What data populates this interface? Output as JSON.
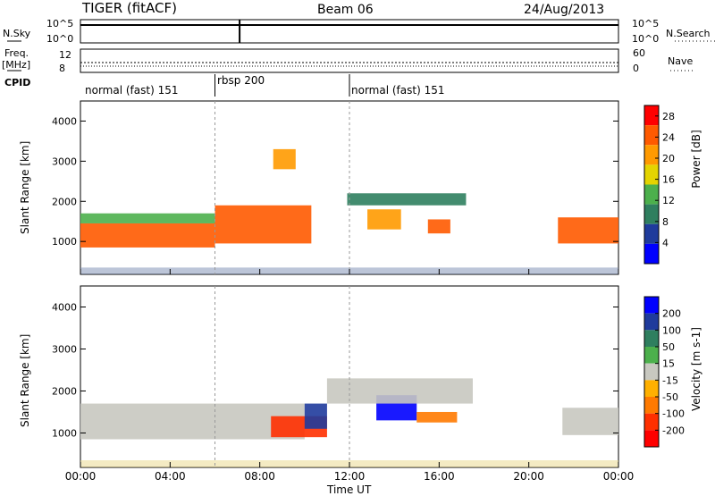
{
  "header": {
    "station": "TIGER (fitACF)",
    "beam": "Beam 06",
    "date": "24/Aug/2013"
  },
  "side_labels": {
    "nsky": "N.Sky",
    "freq": "Freq.",
    "freq_unit": "[MHz]",
    "cpid": "CPID",
    "nsearch": "N.Search",
    "nave": "Nave"
  },
  "panel_ticks": {
    "nsky_left": [
      "10^5",
      "10^0"
    ],
    "nsky_right": [
      "10^5",
      "10^0"
    ],
    "freq_left": [
      "12",
      "8"
    ],
    "nave_right": [
      "60",
      "0"
    ]
  },
  "cpid_segments": [
    {
      "label": "normal (fast) 151",
      "start_hour": 0,
      "end_hour": 6
    },
    {
      "label": "rbsp 200",
      "start_hour": 6,
      "end_hour": 12
    },
    {
      "label": "normal (fast) 151",
      "start_hour": 12,
      "end_hour": 24
    }
  ],
  "chart_data": [
    {
      "type": "heatmap",
      "name": "power",
      "xlabel": "Time UT",
      "ylabel": "Slant Range [km]",
      "xlim": [
        0,
        24
      ],
      "ylim": [
        180,
        4500
      ],
      "x_ticks": [
        "00:00",
        "04:00",
        "08:00",
        "12:00",
        "16:00",
        "20:00",
        "00:00"
      ],
      "y_ticks": [
        1000,
        2000,
        3000,
        4000
      ],
      "colorbar": {
        "label": "Power [dB]",
        "ticks": [
          4,
          8,
          12,
          16,
          20,
          24,
          28
        ],
        "range": [
          0,
          30
        ],
        "colors": [
          "#0000ff",
          "#1f3b9c",
          "#2f7f5f",
          "#4cb04c",
          "#e4d400",
          "#ff9a00",
          "#ff5a00",
          "#ff0000"
        ]
      },
      "regions": [
        {
          "t0": 0,
          "t1": 6,
          "r0": 850,
          "r1": 1450,
          "value": 26
        },
        {
          "t0": 0,
          "t1": 6,
          "r0": 1450,
          "r1": 1700,
          "value": 12
        },
        {
          "t0": 6,
          "t1": 10.3,
          "r0": 950,
          "r1": 1900,
          "value": 24
        },
        {
          "t0": 8.6,
          "t1": 9.6,
          "r0": 2800,
          "r1": 3300,
          "value": 20
        },
        {
          "t0": 12.8,
          "t1": 14.3,
          "r0": 1300,
          "r1": 1800,
          "value": 22
        },
        {
          "t0": 15.5,
          "t1": 16.5,
          "r0": 1200,
          "r1": 1550,
          "value": 24
        },
        {
          "t0": 11.9,
          "t1": 17.2,
          "r0": 1900,
          "r1": 2200,
          "value": 8
        },
        {
          "t0": 21.3,
          "t1": 24,
          "r0": 950,
          "r1": 1600,
          "value": 24
        }
      ]
    },
    {
      "type": "heatmap",
      "name": "velocity",
      "xlabel": "Time UT",
      "ylabel": "Slant Range [km]",
      "xlim": [
        0,
        24
      ],
      "ylim": [
        180,
        4500
      ],
      "x_ticks": [
        "00:00",
        "04:00",
        "08:00",
        "12:00",
        "16:00",
        "20:00",
        "00:00"
      ],
      "y_ticks": [
        1000,
        2000,
        3000,
        4000
      ],
      "colorbar": {
        "label": "Velocity [m s-1]",
        "ticks": [
          200,
          100,
          50,
          15,
          -15,
          -50,
          -100,
          -200
        ],
        "colors": [
          "#0000ff",
          "#1f3b9c",
          "#2f7f5f",
          "#4cb04c",
          "#c8c8c0",
          "#ffb000",
          "#ff7a00",
          "#ff3000",
          "#ff0000"
        ]
      },
      "regions": [
        {
          "t0": 0,
          "t1": 10,
          "r0": 850,
          "r1": 1700,
          "value": 0
        },
        {
          "t0": 8.5,
          "t1": 11,
          "r0": 900,
          "r1": 1400,
          "value": -150
        },
        {
          "t0": 10,
          "t1": 11,
          "r0": 1100,
          "r1": 1700,
          "value": 120
        },
        {
          "t0": 13.2,
          "t1": 15,
          "r0": 1300,
          "r1": 1900,
          "value": 220
        },
        {
          "t0": 15,
          "t1": 16.8,
          "r0": 1250,
          "r1": 1500,
          "value": -80
        },
        {
          "t0": 11,
          "t1": 17.5,
          "r0": 1700,
          "r1": 2300,
          "value": 0
        },
        {
          "t0": 21.5,
          "t1": 24,
          "r0": 950,
          "r1": 1600,
          "value": 0
        }
      ]
    }
  ]
}
